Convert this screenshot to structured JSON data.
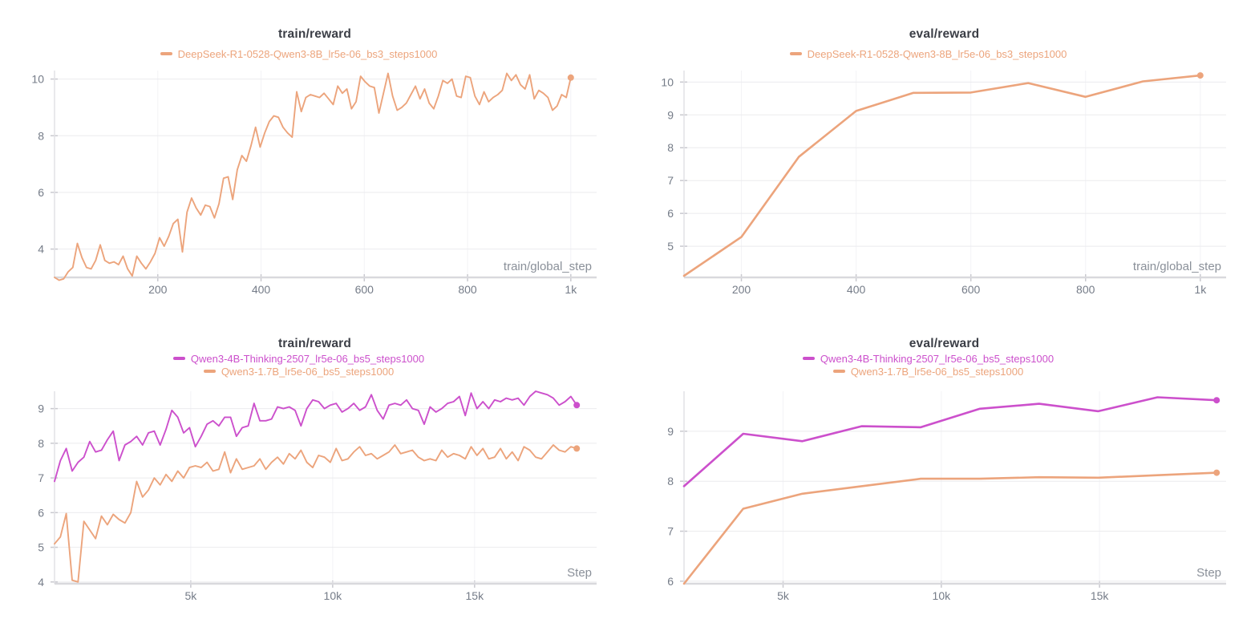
{
  "page": {
    "background": "#ffffff"
  },
  "chart_data": [
    {
      "type": "line",
      "position": "top-left",
      "title": "train/reward",
      "xlabel": "train/global_step",
      "ylabel": "",
      "grid": true,
      "legend_position": "top-center",
      "x_domain": [
        0,
        1050
      ],
      "y_domain": [
        3.0,
        10.3
      ],
      "x_ticks": [
        200,
        400,
        600,
        800,
        1000
      ],
      "x_tick_labels": [
        "200",
        "400",
        "600",
        "800",
        "1k"
      ],
      "y_ticks": [
        4,
        6,
        8,
        10
      ],
      "y_tick_labels": [
        "4",
        "6",
        "8",
        "10"
      ],
      "series": [
        {
          "name": "DeepSeek-R1-0528-Qwen3-8B_lr5e-06_bs3_steps1000",
          "color": "#eca47c",
          "x_start": 0,
          "x_end": 1000,
          "end_marker": true,
          "values": [
            3.0,
            2.9,
            2.95,
            3.2,
            3.35,
            4.2,
            3.7,
            3.35,
            3.3,
            3.6,
            4.15,
            3.6,
            3.5,
            3.55,
            3.45,
            3.75,
            3.3,
            3.05,
            3.75,
            3.5,
            3.3,
            3.55,
            3.85,
            4.4,
            4.1,
            4.45,
            4.9,
            5.05,
            3.9,
            5.3,
            5.8,
            5.45,
            5.2,
            5.55,
            5.5,
            5.1,
            5.6,
            6.5,
            6.55,
            5.75,
            6.8,
            7.3,
            7.1,
            7.65,
            8.3,
            7.6,
            8.1,
            8.5,
            8.7,
            8.65,
            8.3,
            8.1,
            7.95,
            9.55,
            8.85,
            9.35,
            9.45,
            9.4,
            9.35,
            9.5,
            9.3,
            9.1,
            9.75,
            9.5,
            9.65,
            8.95,
            9.2,
            10.1,
            9.9,
            9.75,
            9.7,
            8.8,
            9.5,
            10.2,
            9.4,
            8.9,
            9.0,
            9.15,
            9.45,
            9.75,
            9.3,
            9.65,
            9.15,
            8.95,
            9.4,
            9.95,
            9.85,
            10.0,
            9.4,
            9.35,
            10.1,
            10.05,
            9.4,
            9.1,
            9.55,
            9.2,
            9.35,
            9.45,
            9.6,
            10.2,
            9.95,
            10.15,
            9.8,
            9.65,
            10.15,
            9.3,
            9.6,
            9.5,
            9.35,
            8.9,
            9.05,
            9.45,
            9.35,
            10.05
          ]
        }
      ]
    },
    {
      "type": "line",
      "position": "top-right",
      "title": "eval/reward",
      "xlabel": "train/global_step",
      "ylabel": "",
      "grid": true,
      "legend_position": "top-center",
      "x_domain": [
        100,
        1045
      ],
      "y_domain": [
        4.05,
        10.35
      ],
      "x_ticks": [
        200,
        400,
        600,
        800,
        1000
      ],
      "x_tick_labels": [
        "200",
        "400",
        "600",
        "800",
        "1k"
      ],
      "y_ticks": [
        5,
        6,
        7,
        8,
        9,
        10
      ],
      "y_tick_labels": [
        "5",
        "6",
        "7",
        "8",
        "9",
        "10"
      ],
      "series": [
        {
          "name": "DeepSeek-R1-0528-Qwen3-8B_lr5e-06_bs3_steps1000",
          "color": "#eca47c",
          "x_start": 100,
          "x_end": 1000,
          "end_marker": true,
          "values": [
            4.1,
            5.28,
            7.72,
            9.12,
            9.67,
            9.68,
            9.97,
            9.55,
            10.02,
            10.2
          ]
        }
      ]
    },
    {
      "type": "line",
      "position": "bottom-left",
      "title": "train/reward",
      "xlabel": "Step",
      "ylabel": "",
      "grid": true,
      "legend_position": "top-center",
      "x_domain": [
        200,
        19300
      ],
      "y_domain": [
        3.95,
        9.5
      ],
      "x_ticks": [
        5000,
        10000,
        15000
      ],
      "x_tick_labels": [
        "5k",
        "10k",
        "15k"
      ],
      "y_ticks": [
        4,
        5,
        6,
        7,
        8,
        9
      ],
      "y_tick_labels": [
        "4",
        "5",
        "6",
        "7",
        "8",
        "9"
      ],
      "series": [
        {
          "name": "Qwen3-4B-Thinking-2507_lr5e-06_bs5_steps1000",
          "color": "#cc50cc",
          "x_start": 200,
          "x_end": 18600,
          "end_marker": true,
          "values": [
            6.9,
            7.5,
            7.85,
            7.2,
            7.45,
            7.6,
            8.05,
            7.75,
            7.8,
            8.1,
            8.35,
            7.5,
            7.95,
            8.05,
            8.2,
            7.95,
            8.3,
            8.35,
            7.95,
            8.4,
            8.95,
            8.75,
            8.3,
            8.45,
            7.9,
            8.2,
            8.55,
            8.65,
            8.5,
            8.75,
            8.75,
            8.2,
            8.45,
            8.5,
            9.15,
            8.65,
            8.65,
            8.7,
            9.05,
            9.0,
            9.05,
            8.95,
            8.5,
            9.0,
            9.25,
            9.2,
            9.0,
            9.1,
            9.15,
            8.9,
            9.0,
            9.15,
            8.95,
            9.05,
            9.4,
            8.95,
            8.7,
            9.1,
            9.15,
            9.1,
            9.25,
            9.0,
            8.95,
            8.55,
            9.05,
            8.9,
            9.0,
            9.15,
            9.2,
            9.35,
            8.8,
            9.45,
            9.0,
            9.2,
            9.0,
            9.25,
            9.2,
            9.3,
            9.25,
            9.3,
            9.1,
            9.35,
            9.5,
            9.45,
            9.4,
            9.3,
            9.1,
            9.2,
            9.35,
            9.1
          ]
        },
        {
          "name": "Qwen3-1.7B_lr5e-06_bs5_steps1000",
          "color": "#eca47c",
          "x_start": 200,
          "x_end": 18600,
          "end_marker": true,
          "values": [
            5.1,
            5.3,
            5.97,
            4.05,
            4.0,
            5.75,
            5.5,
            5.25,
            5.9,
            5.65,
            5.95,
            5.8,
            5.7,
            6.0,
            6.9,
            6.45,
            6.65,
            7.0,
            6.8,
            7.1,
            6.9,
            7.2,
            7.0,
            7.3,
            7.35,
            7.3,
            7.45,
            7.2,
            7.25,
            7.75,
            7.15,
            7.55,
            7.25,
            7.3,
            7.35,
            7.55,
            7.25,
            7.45,
            7.6,
            7.4,
            7.7,
            7.55,
            7.8,
            7.45,
            7.3,
            7.65,
            7.6,
            7.45,
            7.85,
            7.5,
            7.55,
            7.75,
            7.9,
            7.65,
            7.7,
            7.55,
            7.65,
            7.75,
            7.95,
            7.7,
            7.75,
            7.8,
            7.6,
            7.5,
            7.55,
            7.5,
            7.8,
            7.6,
            7.7,
            7.65,
            7.55,
            7.9,
            7.65,
            7.85,
            7.55,
            7.6,
            7.85,
            7.55,
            7.75,
            7.5,
            7.9,
            7.8,
            7.6,
            7.55,
            7.75,
            7.95,
            7.8,
            7.75,
            7.9,
            7.85
          ]
        }
      ]
    },
    {
      "type": "line",
      "position": "bottom-right",
      "title": "eval/reward",
      "xlabel": "Step",
      "ylabel": "",
      "grid": true,
      "legend_position": "top-center",
      "x_domain": [
        1870,
        19000
      ],
      "y_domain": [
        5.95,
        9.8
      ],
      "x_ticks": [
        5000,
        10000,
        15000
      ],
      "x_tick_labels": [
        "5k",
        "10k",
        "15k"
      ],
      "y_ticks": [
        6,
        7,
        8,
        9
      ],
      "y_tick_labels": [
        "6",
        "7",
        "8",
        "9"
      ],
      "series": [
        {
          "name": "Qwen3-4B-Thinking-2507_lr5e-06_bs5_steps1000",
          "color": "#cc50cc",
          "x_start": 1870,
          "x_end": 18700,
          "end_marker": true,
          "values": [
            7.9,
            8.95,
            8.8,
            9.1,
            9.08,
            9.45,
            9.55,
            9.4,
            9.68,
            9.62
          ]
        },
        {
          "name": "Qwen3-1.7B_lr5e-06_bs5_steps1000",
          "color": "#eca47c",
          "x_start": 1870,
          "x_end": 18700,
          "end_marker": true,
          "values": [
            5.95,
            7.45,
            7.75,
            7.9,
            8.05,
            8.05,
            8.08,
            8.07,
            8.12,
            8.17
          ]
        }
      ]
    }
  ],
  "style_colors": {
    "title": "#3b3e46",
    "tick_label": "#757c88",
    "axis_label": "#8a9099",
    "h_gridline": "#ebebee",
    "v_gridline": "#f3f3f6",
    "x_axis_line": "#d9d9dd",
    "y_axis_line": "#e2e2e6",
    "tick_mark": "#c9c9cf"
  }
}
